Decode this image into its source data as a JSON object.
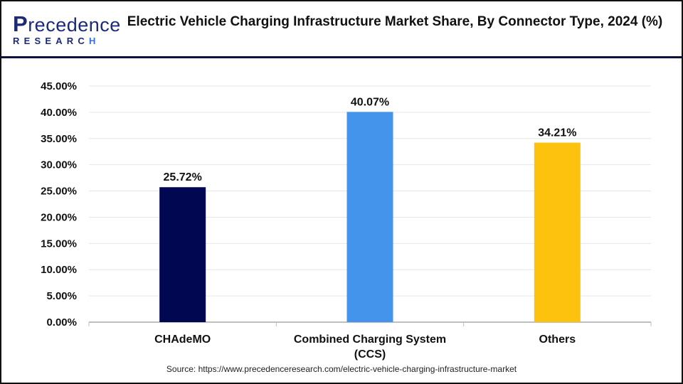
{
  "brand": {
    "logo_text": "Precedence",
    "logo_subtext": "RESEARCH"
  },
  "title": "Electric Vehicle Charging Infrastructure Market Share, By Connector Type, 2024 (%)",
  "source": "Source: https://www.precedenceresearch.com/electric-vehicle-charging-infrastructure-market",
  "chart_data": {
    "type": "bar",
    "title": "Electric Vehicle Charging Infrastructure Market Share, By Connector Type, 2024 (%)",
    "categories": [
      "CHAdeMO",
      "Combined Charging System (CCS)",
      "Others"
    ],
    "category_label_lines": [
      [
        "CHAdeMO"
      ],
      [
        "Combined Charging System",
        "(CCS)"
      ],
      [
        "Others"
      ]
    ],
    "values": [
      25.72,
      40.07,
      34.21
    ],
    "data_labels": [
      "25.72%",
      "40.07%",
      "34.21%"
    ],
    "colors": [
      "#020751",
      "#4594ec",
      "#fdc20d"
    ],
    "ylim": [
      0,
      45
    ],
    "yticks": [
      0,
      5,
      10,
      15,
      20,
      25,
      30,
      35,
      40,
      45
    ],
    "ytick_labels": [
      "0.00%",
      "5.00%",
      "10.00%",
      "15.00%",
      "20.00%",
      "25.00%",
      "30.00%",
      "35.00%",
      "40.00%",
      "45.00%"
    ],
    "grid": true,
    "xlabel": "",
    "ylabel": ""
  }
}
